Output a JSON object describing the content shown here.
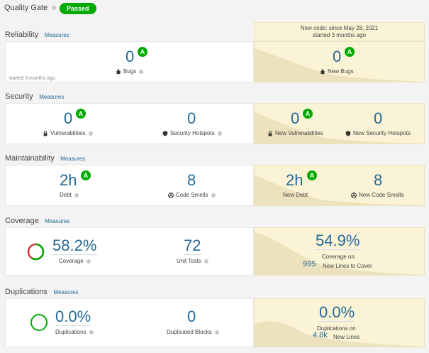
{
  "quality_gate": {
    "title": "Quality Gate",
    "status": "Passed"
  },
  "new_code": {
    "period": "New code: since May 28, 2021",
    "started": "started 3 months ago"
  },
  "reliability": {
    "title": "Reliability",
    "measures": "Measures",
    "bugs": {
      "value": "0",
      "rating": "A",
      "label": "Bugs"
    },
    "started": "started 3 months ago",
    "new_bugs": {
      "value": "0",
      "rating": "A",
      "label": "New Bugs"
    }
  },
  "security": {
    "title": "Security",
    "measures": "Measures",
    "vulnerabilities": {
      "value": "0",
      "rating": "A",
      "label": "Vulnerabilities"
    },
    "hotspots": {
      "value": "0",
      "label": "Security Hotspots"
    },
    "new_vulnerabilities": {
      "value": "0",
      "rating": "A",
      "label": "New Vulnerabilities"
    },
    "new_hotspots": {
      "value": "0",
      "label": "New Security Hotspots"
    }
  },
  "maintainability": {
    "title": "Maintainability",
    "measures": "Measures",
    "debt": {
      "value": "2h",
      "rating": "A",
      "label": "Debt"
    },
    "code_smells": {
      "value": "8",
      "label": "Code Smells"
    },
    "new_debt": {
      "value": "2h",
      "rating": "A",
      "label": "New Debt"
    },
    "new_code_smells": {
      "value": "8",
      "label": "New Code Smells"
    }
  },
  "coverage": {
    "title": "Coverage",
    "measures": "Measures",
    "coverage": {
      "value": "58.2%",
      "label": "Coverage",
      "fraction": 0.582
    },
    "unit_tests": {
      "value": "72",
      "label": "Unit Tests"
    },
    "new_coverage": {
      "value": "54.9%",
      "label": "Coverage on",
      "lines_value": "995",
      "lines_label": "New Lines to Cover"
    }
  },
  "duplications": {
    "title": "Duplications",
    "measures": "Measures",
    "duplications": {
      "value": "0.0%",
      "label": "Duplications"
    },
    "blocks": {
      "value": "0",
      "label": "Duplicated Blocks"
    },
    "new_duplications": {
      "value": "0.0%",
      "label": "Duplications on",
      "lines_value": "4.8k",
      "lines_label": "New Lines"
    }
  },
  "colors": {
    "accent": "#236a97",
    "passed": "#00aa00",
    "new_code_bg": "#fbf3d5",
    "coverage_red": "#d4333f"
  },
  "icons": {
    "info": "info-icon",
    "bug": "bug-icon",
    "lock": "lock-icon",
    "shield": "shield-icon",
    "smell": "code-smell-icon"
  }
}
